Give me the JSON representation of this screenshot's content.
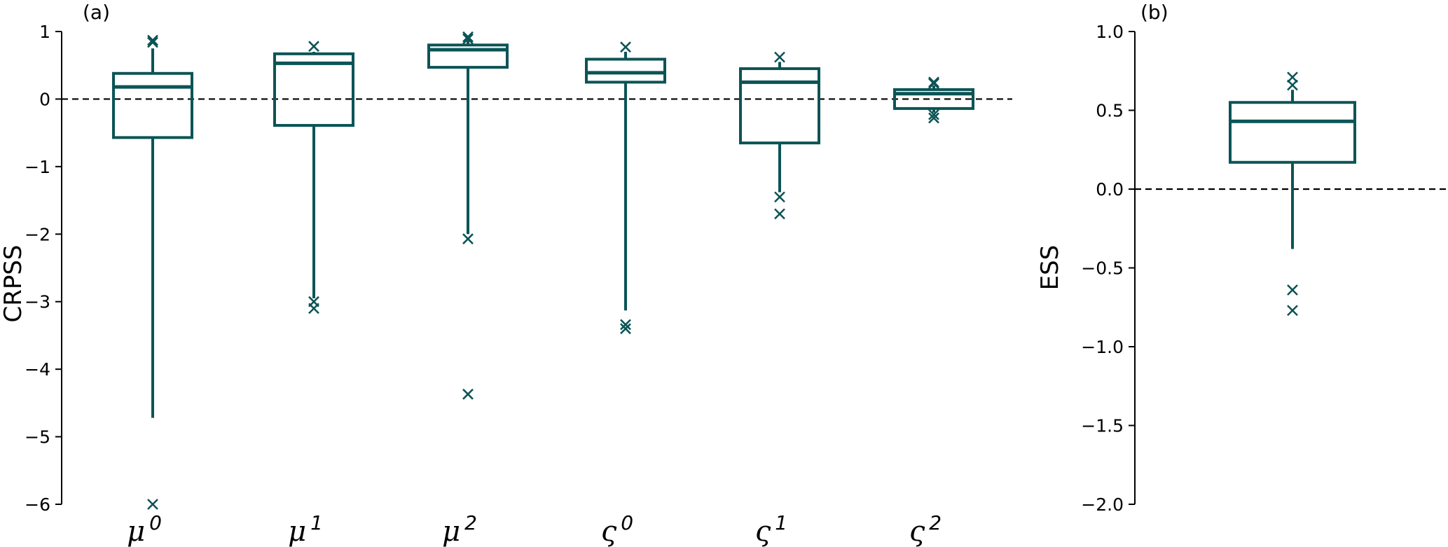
{
  "colors": {
    "box": "#0c5456",
    "reference_line": "#000000"
  },
  "chart_data": [
    {
      "type": "box",
      "panel_label": "(a)",
      "ylabel": "CRPSS",
      "ylim": [
        -6,
        1
      ],
      "yticks": [
        1,
        0,
        -1,
        -2,
        -3,
        -4,
        -5,
        -6
      ],
      "ytick_labels": [
        "1",
        "0",
        "−1",
        "−2",
        "−3",
        "−4",
        "−5",
        "−6"
      ],
      "reference_line": 0,
      "grid": false,
      "categories": [
        {
          "base": "μ",
          "sup": "0",
          "q1": -0.57,
          "median": 0.18,
          "q3": 0.38,
          "whisker_low": -4.72,
          "whisker_high": 0.75,
          "outliers": [
            0.87,
            0.84,
            -6.0
          ]
        },
        {
          "base": "μ",
          "sup": "1",
          "q1": -0.39,
          "median": 0.53,
          "q3": 0.67,
          "whisker_low": -2.95,
          "whisker_high": 0.7,
          "outliers": [
            0.78,
            -3.0,
            -3.1
          ]
        },
        {
          "base": "μ",
          "sup": "2",
          "q1": 0.47,
          "median": 0.73,
          "q3": 0.8,
          "whisker_low": -2.0,
          "whisker_high": 0.88,
          "outliers": [
            0.92,
            0.89,
            -2.07,
            -4.37
          ]
        },
        {
          "base": "ς",
          "sup": "0",
          "q1": 0.25,
          "median": 0.39,
          "q3": 0.59,
          "whisker_low": -3.13,
          "whisker_high": 0.7,
          "outliers": [
            0.77,
            -3.34,
            -3.4
          ]
        },
        {
          "base": "ς",
          "sup": "1",
          "q1": -0.65,
          "median": 0.25,
          "q3": 0.45,
          "whisker_low": -1.38,
          "whisker_high": 0.55,
          "outliers": [
            0.62,
            -1.45,
            -1.7
          ]
        },
        {
          "base": "ς",
          "sup": "2",
          "q1": -0.14,
          "median": 0.08,
          "q3": 0.14,
          "whisker_low": -0.2,
          "whisker_high": 0.2,
          "outliers": [
            0.23,
            0.25,
            -0.23,
            -0.28
          ]
        }
      ]
    },
    {
      "type": "box",
      "panel_label": "(b)",
      "ylabel": "ESS",
      "ylim": [
        -2.0,
        1.0
      ],
      "yticks": [
        1.0,
        0.5,
        0.0,
        -0.5,
        -1.0,
        -1.5,
        -2.0
      ],
      "ytick_labels": [
        "1.0",
        "0.5",
        "0.0",
        "−0.5",
        "−1.0",
        "−1.5",
        "−2.0"
      ],
      "reference_line": 0,
      "grid": false,
      "categories": [
        {
          "base": "",
          "sup": "",
          "q1": 0.17,
          "median": 0.43,
          "q3": 0.55,
          "whisker_low": -0.38,
          "whisker_high": 0.63,
          "outliers": [
            0.71,
            0.66,
            -0.64,
            -0.77
          ]
        }
      ]
    }
  ]
}
